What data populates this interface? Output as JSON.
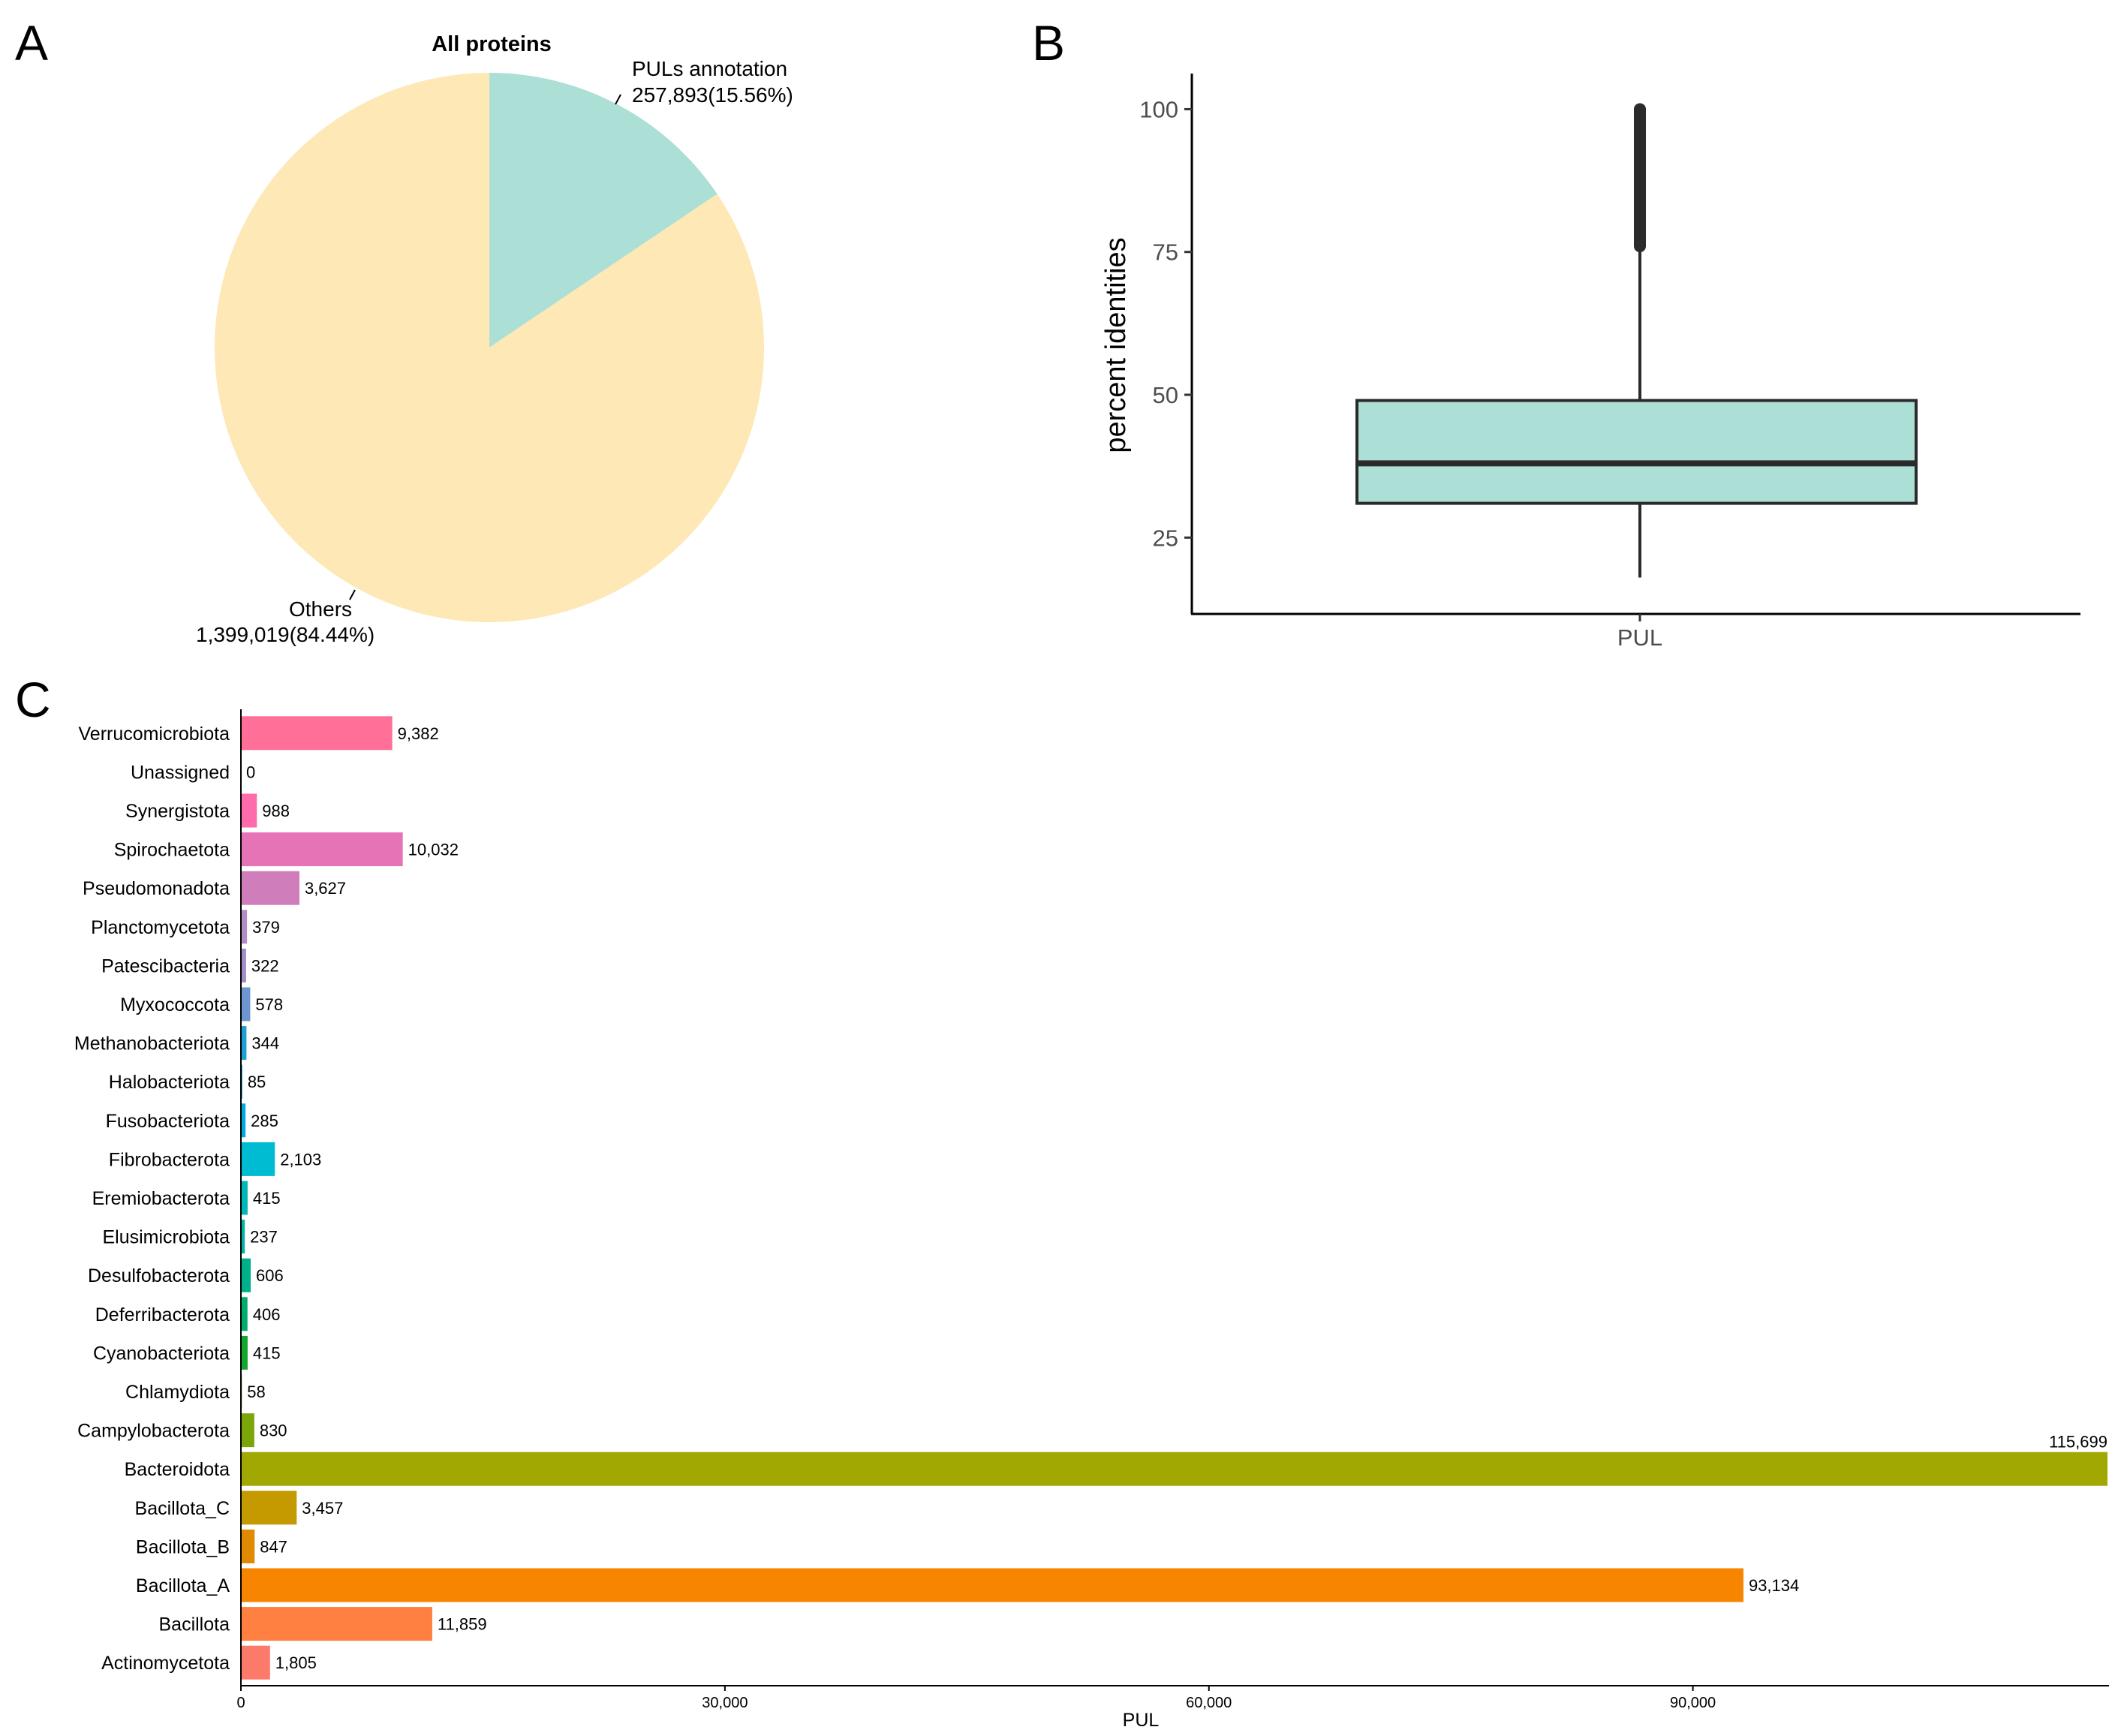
{
  "panels": {
    "a": "A",
    "b": "B",
    "c": "C"
  },
  "chart_data": [
    {
      "type": "pie",
      "title": "All proteins",
      "slices": [
        {
          "label": "PULs annotation",
          "value_text": "257,893(15.56%)",
          "value": 257893,
          "percent": 15.56,
          "color": "#acdfd5"
        },
        {
          "label": "Others",
          "value_text": "1,399,019(84.44%)",
          "value": 1399019,
          "percent": 84.44,
          "color": "#fde8b6"
        }
      ]
    },
    {
      "type": "box",
      "categories": [
        "PUL"
      ],
      "ylabel": "percent identities",
      "xlabel": "",
      "ylim": [
        14,
        104
      ],
      "yticks": [
        25,
        50,
        75,
        100
      ],
      "box": {
        "q1": 31,
        "median": 38,
        "q3": 49,
        "whisker_low": 18,
        "whisker_high": 76,
        "outliers_from": 76,
        "outliers_to": 100
      },
      "fill": "#acdfd5",
      "stroke": "#2b2b2b"
    },
    {
      "type": "bar",
      "orientation": "horizontal",
      "xlabel": "PUL",
      "ylabel": "",
      "xlim": [
        0,
        115699
      ],
      "xticks": [
        0,
        30000,
        60000,
        90000
      ],
      "xtick_labels": [
        "0",
        "30,000",
        "60,000",
        "90,000"
      ],
      "categories": [
        "Verrucomicrobiota",
        "Unassigned",
        "Synergistota",
        "Spirochaetota",
        "Pseudomonadota",
        "Planctomycetota",
        "Patescibacteria",
        "Myxococcota",
        "Methanobacteriota",
        "Halobacteriota",
        "Fusobacteriota",
        "Fibrobacterota",
        "Eremiobacterota",
        "Elusimicrobiota",
        "Desulfobacterota",
        "Deferribacterota",
        "Cyanobacteriota",
        "Chlamydiota",
        "Campylobacterota",
        "Bacteroidota",
        "Bacillota_C",
        "Bacillota_B",
        "Bacillota_A",
        "Bacillota",
        "Actinomycetota"
      ],
      "values": [
        9382,
        0,
        988,
        10032,
        3627,
        379,
        322,
        578,
        344,
        85,
        285,
        2103,
        415,
        237,
        606,
        406,
        415,
        58,
        830,
        115699,
        3457,
        847,
        93134,
        11859,
        1805
      ],
      "value_labels": [
        "9,382",
        "0",
        "988",
        "10,032",
        "3,627",
        "379",
        "322",
        "578",
        "344",
        "85",
        "285",
        "2,103",
        "415",
        "237",
        "606",
        "406",
        "415",
        "58",
        "830",
        "115,699",
        "3,457",
        "847",
        "93,134",
        "11,859",
        "1,805"
      ],
      "colors": [
        "#ff6f97",
        "#ff6cb0",
        "#fe6cab",
        "#e673b6",
        "#cf7ebb",
        "#b58bc2",
        "#a38cc8",
        "#6e95cf",
        "#1e9fd8",
        "#00a4dc",
        "#00aadb",
        "#00bcd3",
        "#00b8b8",
        "#00b3a3",
        "#00b08a",
        "#00ad6c",
        "#14a72d",
        "#48a30b",
        "#7aa60a",
        "#a1a801",
        "#c49a00",
        "#df8a00",
        "#f88500",
        "#ff8040",
        "#fb7a6a"
      ]
    }
  ]
}
